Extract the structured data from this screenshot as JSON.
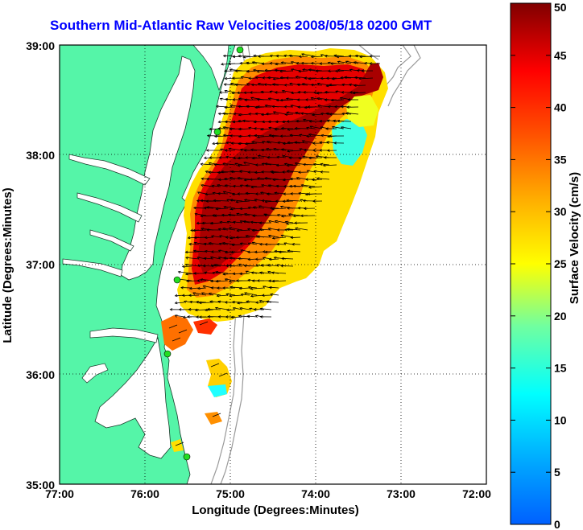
{
  "title": "Southern Mid-Atlantic Raw Velocities 2008/05/18 0200 GMT",
  "axes": {
    "x_label": "Longitude (Degrees:Minutes)",
    "y_label": "Latitude (Degrees:Minutes)",
    "x_ticks": [
      "77:00",
      "76:00",
      "75:00",
      "74:00",
      "73:00",
      "72:00"
    ],
    "y_ticks": [
      "39:00",
      "38:00",
      "37:00",
      "36:00",
      "35:00"
    ]
  },
  "colorbar": {
    "label": "Surface Velocity (cm/s)",
    "ticks": [
      "50",
      "45",
      "40",
      "35",
      "30",
      "25",
      "20",
      "15",
      "10",
      "5",
      "0"
    ],
    "min": 0,
    "max": 50
  },
  "colors": {
    "land": "#55f5a8",
    "title": "#0000ff",
    "bathymetry": "#999999",
    "station": "#22dd22"
  }
}
